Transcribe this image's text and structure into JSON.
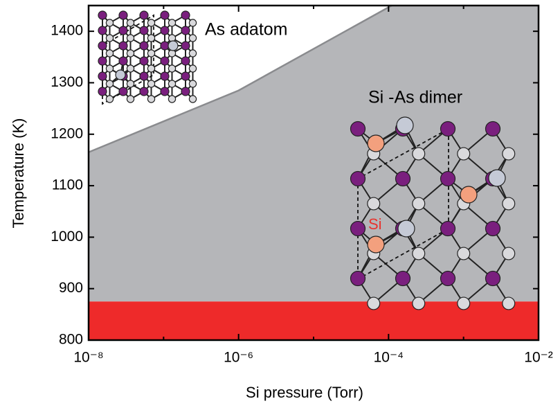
{
  "chart_data": {
    "type": "phase",
    "x_label": "Si pressure (Torr)",
    "y_label": "Temperature (K)",
    "xlim": [
      1e-08,
      0.01
    ],
    "ylim": [
      800,
      1450
    ],
    "log_x": true,
    "xticks": [
      {
        "value": 1e-08,
        "label": "10⁻⁸"
      },
      {
        "value": 1e-06,
        "label": "10⁻⁶"
      },
      {
        "value": 0.0001,
        "label": "10⁻⁴"
      },
      {
        "value": 0.01,
        "label": "10⁻²"
      }
    ],
    "xminor": [
      1e-07,
      1e-05,
      0.001
    ],
    "yticks": [
      800,
      900,
      1000,
      1100,
      1200,
      1300,
      1400
    ],
    "boundary": {
      "x": [
        1e-08,
        1e-06,
        0.00011
      ],
      "values": [
        1165,
        1285,
        1450
      ],
      "color": "#8a8b8e"
    },
    "region_color": "#b5b6b9",
    "band": {
      "ymax": 875,
      "color": "#ee2a2a"
    },
    "annotations": [
      "As adatom",
      "Si -As dimer",
      "Si"
    ]
  }
}
